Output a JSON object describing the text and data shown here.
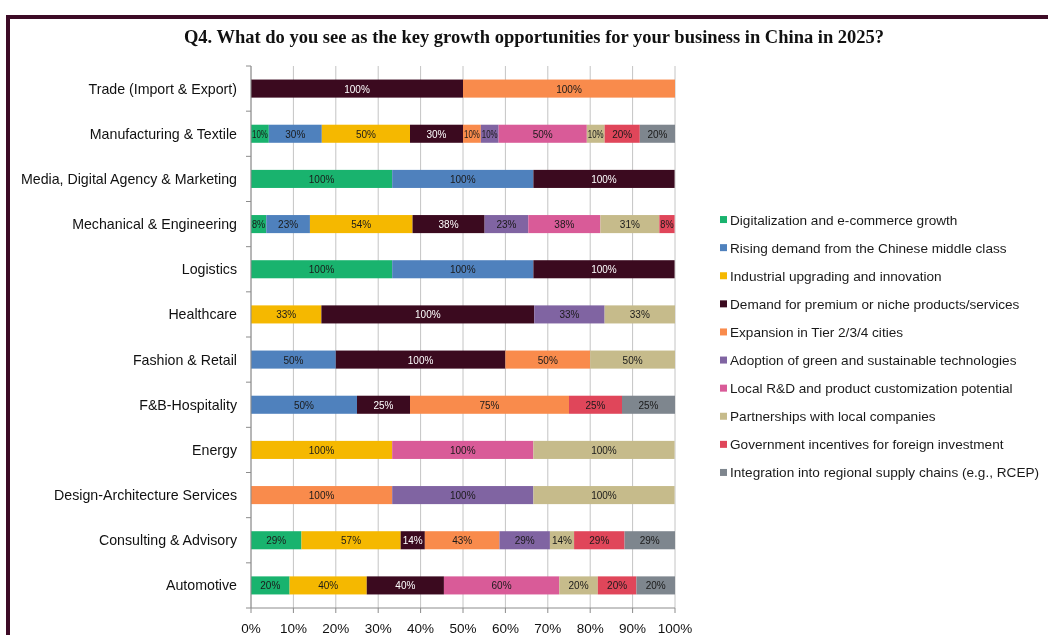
{
  "chart_data": {
    "type": "bar",
    "orientation": "horizontal",
    "stacked": true,
    "title": "Q4. What do you see as the key growth opportunities for your business in China in 2025?",
    "categories": [
      "Trade (Import & Export)",
      "Manufacturing & Textile",
      "Media, Digital Agency & Marketing",
      "Mechanical & Engineering",
      "Logistics",
      "Healthcare",
      "Fashion & Retail",
      "F&B-Hospitality",
      "Energy",
      "Design-Architecture Services",
      "Consulting & Advisory",
      "Automotive"
    ],
    "series": [
      {
        "name": "Digitalization and e-commerce growth",
        "color": "#19b36e",
        "values": [
          null,
          4.2,
          33.3,
          3.6,
          33.3,
          null,
          null,
          null,
          null,
          null,
          11.9,
          9.1
        ]
      },
      {
        "name": "Rising demand from the Chinese middle class",
        "color": "#4f81bd",
        "values": [
          null,
          12.5,
          33.3,
          10.3,
          33.3,
          null,
          20,
          25,
          null,
          null,
          null,
          null
        ]
      },
      {
        "name": "Industrial upgrading and innovation",
        "color": "#f5b800",
        "values": [
          null,
          20.8,
          null,
          24.2,
          null,
          16.6,
          null,
          null,
          33.3,
          null,
          23.4,
          18.2
        ]
      },
      {
        "name": "Demand for premium or niche products/services",
        "color": "#3b0a1f",
        "values": [
          50,
          12.5,
          33.3,
          17.0,
          33.3,
          50.2,
          40,
          12.5,
          null,
          null,
          5.7,
          18.2
        ]
      },
      {
        "name": "Expansion in Tier 2/3/4 cities",
        "color": "#f98b4c",
        "values": [
          50,
          4.2,
          null,
          null,
          null,
          null,
          20,
          37.5,
          null,
          33.3,
          17.6,
          null
        ]
      },
      {
        "name": "Adoption of green and sustainable technologies",
        "color": "#8064a2",
        "values": [
          null,
          4.2,
          null,
          10.3,
          null,
          16.6,
          null,
          null,
          null,
          33.3,
          11.9,
          null
        ]
      },
      {
        "name": "Local R&D and product customization potential",
        "color": "#d95b98",
        "values": [
          null,
          20.8,
          null,
          17.0,
          null,
          null,
          null,
          null,
          33.3,
          null,
          null,
          27.2
        ]
      },
      {
        "name": "Partnerships with local companies",
        "color": "#c6bb8b",
        "values": [
          null,
          4.2,
          null,
          13.9,
          null,
          16.6,
          20,
          null,
          33.3,
          33.3,
          5.7,
          9.1
        ]
      },
      {
        "name": "Government incentives for foreign investment",
        "color": "#e0465a",
        "values": [
          null,
          8.3,
          null,
          3.6,
          null,
          null,
          null,
          12.5,
          null,
          null,
          11.9,
          9.1
        ]
      },
      {
        "name": "Integration into regional supply chains (e.g., RCEP)",
        "color": "#7e868e",
        "values": [
          null,
          8.3,
          null,
          null,
          null,
          null,
          null,
          12.5,
          null,
          null,
          11.9,
          9.1
        ]
      }
    ],
    "annotations": [
      "100%",
      "100%",
      "10%",
      "30%",
      "50%",
      "30%",
      "10%",
      "10%",
      "50%",
      "10%",
      "20%",
      "20%",
      "100%",
      "100%",
      "100%",
      "8%",
      "23%",
      "54%",
      "38%",
      "23%",
      "38%",
      "31%",
      "8%",
      "100%",
      "100%",
      "100%",
      "33%",
      "100%",
      "33%",
      "33%",
      "50%",
      "100%",
      "50%",
      "50%",
      "50%",
      "25%",
      "75%",
      "25%",
      "25%",
      "100%",
      "100%",
      "100%",
      "100%",
      "100%",
      "100%",
      "29%",
      "57%",
      "14%",
      "43%",
      "29%",
      "14%",
      "29%",
      "29%",
      "20%",
      "40%",
      "40%",
      "60%",
      "20%",
      "20%",
      "20%"
    ],
    "xlim": [
      0,
      100
    ],
    "xticks": [
      {
        "value": 0,
        "label": "0%"
      },
      {
        "value": 10,
        "label": "10%"
      },
      {
        "value": 20,
        "label": "20%"
      },
      {
        "value": 30,
        "label": "30%"
      },
      {
        "value": 40,
        "label": "40%"
      },
      {
        "value": 50,
        "label": "50%"
      },
      {
        "value": 60,
        "label": "60%"
      },
      {
        "value": 70,
        "label": "70%"
      },
      {
        "value": 80,
        "label": "80%"
      },
      {
        "value": 90,
        "label": "90%"
      },
      {
        "value": 100,
        "label": "100%"
      }
    ],
    "grid": "x",
    "legend": "right"
  }
}
